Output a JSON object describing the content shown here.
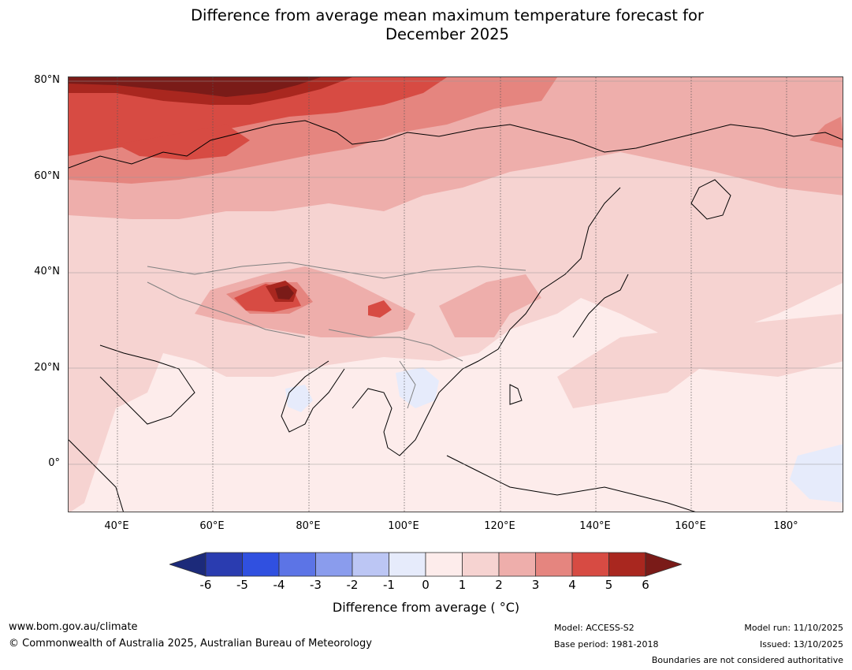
{
  "title": {
    "line1": "Difference from average mean maximum temperature forecast for",
    "line2": "December 2025"
  },
  "axes": {
    "lat_labels": [
      "80°N",
      "60°N",
      "40°N",
      "20°N",
      "0°"
    ],
    "lon_labels": [
      "40°E",
      "60°E",
      "80°E",
      "100°E",
      "120°E",
      "140°E",
      "160°E",
      "180°"
    ]
  },
  "colorbar": {
    "ticks": [
      "-6",
      "-5",
      "-4",
      "-3",
      "-2",
      "-1",
      "0",
      "1",
      "2",
      "3",
      "4",
      "5",
      "6"
    ],
    "colors": [
      "#1c2a7a",
      "#2a3cb0",
      "#3050e0",
      "#5c74e6",
      "#8a9ced",
      "#bcc6f4",
      "#e6ebfb",
      "#fdeceb",
      "#f6d3d1",
      "#eeaeab",
      "#e5857f",
      "#d74b43",
      "#a9271f",
      "#7a1b18"
    ],
    "label": "Difference from average ( °C)"
  },
  "footer": {
    "website": "www.bom.gov.au/climate",
    "copyright": "© Commonwealth of Australia 2025, Australian Bureau of Meteorology",
    "model": "Model: ACCESS-S2",
    "base_period": "Base period: 1981-2018",
    "model_run": "Model run: 11/10/2025",
    "issued": "Issued: 13/10/2025",
    "disclaimer": "Boundaries are not considered authoritative"
  }
}
